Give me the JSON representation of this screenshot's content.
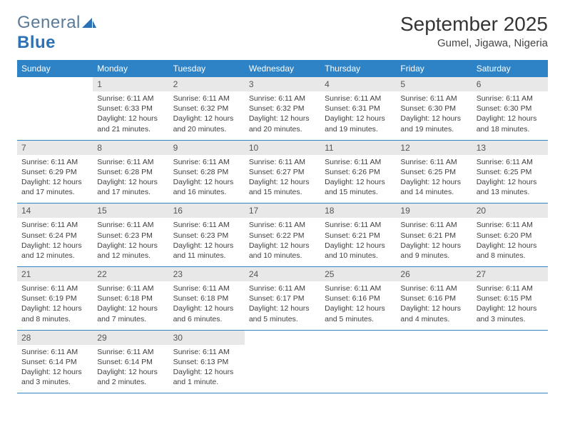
{
  "logo": {
    "text1": "General",
    "text2": "Blue"
  },
  "header": {
    "month_title": "September 2025",
    "location": "Gumel, Jigawa, Nigeria"
  },
  "colors": {
    "header_blue": "#2d83c5",
    "daynum_bg": "#e8e8e8",
    "logo_gray": "#5b7a99",
    "logo_blue": "#2d72b5"
  },
  "day_names": [
    "Sunday",
    "Monday",
    "Tuesday",
    "Wednesday",
    "Thursday",
    "Friday",
    "Saturday"
  ],
  "weeks": [
    [
      null,
      {
        "n": "1",
        "sr": "6:11 AM",
        "ss": "6:33 PM",
        "dl": "12 hours and 21 minutes."
      },
      {
        "n": "2",
        "sr": "6:11 AM",
        "ss": "6:32 PM",
        "dl": "12 hours and 20 minutes."
      },
      {
        "n": "3",
        "sr": "6:11 AM",
        "ss": "6:32 PM",
        "dl": "12 hours and 20 minutes."
      },
      {
        "n": "4",
        "sr": "6:11 AM",
        "ss": "6:31 PM",
        "dl": "12 hours and 19 minutes."
      },
      {
        "n": "5",
        "sr": "6:11 AM",
        "ss": "6:30 PM",
        "dl": "12 hours and 19 minutes."
      },
      {
        "n": "6",
        "sr": "6:11 AM",
        "ss": "6:30 PM",
        "dl": "12 hours and 18 minutes."
      }
    ],
    [
      {
        "n": "7",
        "sr": "6:11 AM",
        "ss": "6:29 PM",
        "dl": "12 hours and 17 minutes."
      },
      {
        "n": "8",
        "sr": "6:11 AM",
        "ss": "6:28 PM",
        "dl": "12 hours and 17 minutes."
      },
      {
        "n": "9",
        "sr": "6:11 AM",
        "ss": "6:28 PM",
        "dl": "12 hours and 16 minutes."
      },
      {
        "n": "10",
        "sr": "6:11 AM",
        "ss": "6:27 PM",
        "dl": "12 hours and 15 minutes."
      },
      {
        "n": "11",
        "sr": "6:11 AM",
        "ss": "6:26 PM",
        "dl": "12 hours and 15 minutes."
      },
      {
        "n": "12",
        "sr": "6:11 AM",
        "ss": "6:25 PM",
        "dl": "12 hours and 14 minutes."
      },
      {
        "n": "13",
        "sr": "6:11 AM",
        "ss": "6:25 PM",
        "dl": "12 hours and 13 minutes."
      }
    ],
    [
      {
        "n": "14",
        "sr": "6:11 AM",
        "ss": "6:24 PM",
        "dl": "12 hours and 12 minutes."
      },
      {
        "n": "15",
        "sr": "6:11 AM",
        "ss": "6:23 PM",
        "dl": "12 hours and 12 minutes."
      },
      {
        "n": "16",
        "sr": "6:11 AM",
        "ss": "6:23 PM",
        "dl": "12 hours and 11 minutes."
      },
      {
        "n": "17",
        "sr": "6:11 AM",
        "ss": "6:22 PM",
        "dl": "12 hours and 10 minutes."
      },
      {
        "n": "18",
        "sr": "6:11 AM",
        "ss": "6:21 PM",
        "dl": "12 hours and 10 minutes."
      },
      {
        "n": "19",
        "sr": "6:11 AM",
        "ss": "6:21 PM",
        "dl": "12 hours and 9 minutes."
      },
      {
        "n": "20",
        "sr": "6:11 AM",
        "ss": "6:20 PM",
        "dl": "12 hours and 8 minutes."
      }
    ],
    [
      {
        "n": "21",
        "sr": "6:11 AM",
        "ss": "6:19 PM",
        "dl": "12 hours and 8 minutes."
      },
      {
        "n": "22",
        "sr": "6:11 AM",
        "ss": "6:18 PM",
        "dl": "12 hours and 7 minutes."
      },
      {
        "n": "23",
        "sr": "6:11 AM",
        "ss": "6:18 PM",
        "dl": "12 hours and 6 minutes."
      },
      {
        "n": "24",
        "sr": "6:11 AM",
        "ss": "6:17 PM",
        "dl": "12 hours and 5 minutes."
      },
      {
        "n": "25",
        "sr": "6:11 AM",
        "ss": "6:16 PM",
        "dl": "12 hours and 5 minutes."
      },
      {
        "n": "26",
        "sr": "6:11 AM",
        "ss": "6:16 PM",
        "dl": "12 hours and 4 minutes."
      },
      {
        "n": "27",
        "sr": "6:11 AM",
        "ss": "6:15 PM",
        "dl": "12 hours and 3 minutes."
      }
    ],
    [
      {
        "n": "28",
        "sr": "6:11 AM",
        "ss": "6:14 PM",
        "dl": "12 hours and 3 minutes."
      },
      {
        "n": "29",
        "sr": "6:11 AM",
        "ss": "6:14 PM",
        "dl": "12 hours and 2 minutes."
      },
      {
        "n": "30",
        "sr": "6:11 AM",
        "ss": "6:13 PM",
        "dl": "12 hours and 1 minute."
      },
      null,
      null,
      null,
      null
    ]
  ],
  "labels": {
    "sunrise": "Sunrise:",
    "sunset": "Sunset:",
    "daylight": "Daylight:"
  }
}
